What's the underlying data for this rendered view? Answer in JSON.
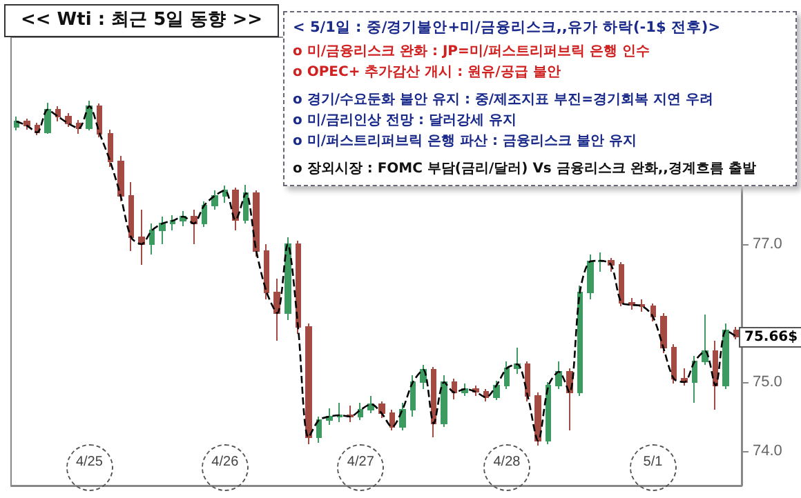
{
  "chart_data": {
    "type": "candlestick",
    "title": "<< Wti : 최근 5일 동향 >>",
    "categories": [
      null,
      null,
      null,
      null,
      null,
      null,
      null,
      "4/25",
      null,
      null,
      null,
      null,
      null,
      null,
      null,
      null,
      null,
      null,
      null,
      null,
      "4/26",
      null,
      null,
      null,
      null,
      null,
      null,
      null,
      null,
      null,
      null,
      null,
      null,
      "4/27",
      null,
      null,
      null,
      null,
      null,
      null,
      null,
      null,
      null,
      null,
      null,
      null,
      null,
      "4/28",
      null,
      null,
      null,
      null,
      null,
      null,
      null,
      null,
      null,
      null,
      null,
      null,
      null,
      "5/1",
      null,
      null,
      null,
      null,
      null,
      null,
      null,
      null
    ],
    "ohlc": [
      [
        78.7,
        78.85,
        78.65,
        78.78
      ],
      [
        78.78,
        78.82,
        78.66,
        78.72
      ],
      [
        78.72,
        78.76,
        78.58,
        78.62
      ],
      [
        78.62,
        79.05,
        78.6,
        78.95
      ],
      [
        78.95,
        79.0,
        78.78,
        78.85
      ],
      [
        78.85,
        78.9,
        78.7,
        78.75
      ],
      [
        78.75,
        78.8,
        78.6,
        78.68
      ],
      [
        78.68,
        79.08,
        78.65,
        79.0
      ],
      [
        79.0,
        79.04,
        78.55,
        78.6
      ],
      [
        78.6,
        78.66,
        78.12,
        78.2
      ],
      [
        78.2,
        78.28,
        77.62,
        77.7
      ],
      [
        77.7,
        77.9,
        76.9,
        77.1
      ],
      [
        77.1,
        77.5,
        76.7,
        77.0
      ],
      [
        77.0,
        77.3,
        76.85,
        77.2
      ],
      [
        77.2,
        77.4,
        77.0,
        77.3
      ],
      [
        77.3,
        77.42,
        77.2,
        77.34
      ],
      [
        77.34,
        77.48,
        77.26,
        77.4
      ],
      [
        77.4,
        77.5,
        77.0,
        77.3
      ],
      [
        77.3,
        77.62,
        77.25,
        77.56
      ],
      [
        77.56,
        77.78,
        77.5,
        77.7
      ],
      [
        77.7,
        77.85,
        77.6,
        77.78
      ],
      [
        77.78,
        77.82,
        77.2,
        77.35
      ],
      [
        77.35,
        77.86,
        77.3,
        77.74
      ],
      [
        77.74,
        77.78,
        76.82,
        76.9
      ],
      [
        76.9,
        77.0,
        76.2,
        76.3
      ],
      [
        76.3,
        76.5,
        75.6,
        76.0
      ],
      [
        76.0,
        77.1,
        75.9,
        77.0
      ],
      [
        77.0,
        77.05,
        75.7,
        75.8
      ],
      [
        75.8,
        75.85,
        74.1,
        74.2
      ],
      [
        74.2,
        74.5,
        74.12,
        74.45
      ],
      [
        74.45,
        74.62,
        74.38,
        74.5
      ],
      [
        74.5,
        74.7,
        74.42,
        74.52
      ],
      [
        74.52,
        74.66,
        74.42,
        74.5
      ],
      [
        74.5,
        74.7,
        74.45,
        74.6
      ],
      [
        74.6,
        74.8,
        74.55,
        74.68
      ],
      [
        74.68,
        74.72,
        74.48,
        74.55
      ],
      [
        74.55,
        74.6,
        74.3,
        74.35
      ],
      [
        74.35,
        74.7,
        74.3,
        74.6
      ],
      [
        74.6,
        75.1,
        74.5,
        75.0
      ],
      [
        75.0,
        75.25,
        74.9,
        75.18
      ],
      [
        75.18,
        75.22,
        74.2,
        74.4
      ],
      [
        74.4,
        75.1,
        74.35,
        75.0
      ],
      [
        75.0,
        75.05,
        74.75,
        74.85
      ],
      [
        74.85,
        74.98,
        74.8,
        74.9
      ],
      [
        74.9,
        74.95,
        74.8,
        74.86
      ],
      [
        74.86,
        74.9,
        74.72,
        74.78
      ],
      [
        74.78,
        75.02,
        74.74,
        74.95
      ],
      [
        74.95,
        75.3,
        74.9,
        75.2
      ],
      [
        75.2,
        75.5,
        75.12,
        75.26
      ],
      [
        75.26,
        75.3,
        74.72,
        74.8
      ],
      [
        74.8,
        74.85,
        74.08,
        74.15
      ],
      [
        74.15,
        75.0,
        74.1,
        74.95
      ],
      [
        74.95,
        75.3,
        74.9,
        75.15
      ],
      [
        75.15,
        75.2,
        74.3,
        74.85
      ],
      [
        74.85,
        76.4,
        74.8,
        76.3
      ],
      [
        76.3,
        76.85,
        76.2,
        76.75
      ],
      [
        76.75,
        76.88,
        76.6,
        76.76
      ],
      [
        76.76,
        76.8,
        76.6,
        76.7
      ],
      [
        76.7,
        76.74,
        76.1,
        76.15
      ],
      [
        76.15,
        76.22,
        76.05,
        76.12
      ],
      [
        76.12,
        76.2,
        76.02,
        76.1
      ],
      [
        76.1,
        76.14,
        75.88,
        75.95
      ],
      [
        75.95,
        76.0,
        75.42,
        75.5
      ],
      [
        75.5,
        75.55,
        74.98,
        75.05
      ],
      [
        75.05,
        75.2,
        74.95,
        75.0
      ],
      [
        75.0,
        75.38,
        74.7,
        75.3
      ],
      [
        75.3,
        75.98,
        75.25,
        75.45
      ],
      [
        75.45,
        75.6,
        74.6,
        74.95
      ],
      [
        74.95,
        75.85,
        74.9,
        75.75
      ],
      [
        75.75,
        75.8,
        75.62,
        75.66
      ]
    ],
    "colors": [
      "#3d9b62",
      "#a34a42",
      "#a34a42",
      "#3d9b62",
      "#a34a42",
      "#a34a42",
      "#a34a42",
      "#3d9b62",
      "#a34a42",
      "#a34a42",
      "#a34a42",
      "#a34a42",
      "#a34a42",
      "#3d9b62",
      "#3d9b62",
      "#3d9b62",
      "#3d9b62",
      "#a34a42",
      "#3d9b62",
      "#3d9b62",
      "#3d9b62",
      "#a34a42",
      "#3d9b62",
      "#a34a42",
      "#a34a42",
      "#a34a42",
      "#3d9b62",
      "#a34a42",
      "#a34a42",
      "#3d9b62",
      "#3d9b62",
      "#3d9b62",
      "#a34a42",
      "#3d9b62",
      "#3d9b62",
      "#a34a42",
      "#a34a42",
      "#3d9b62",
      "#3d9b62",
      "#3d9b62",
      "#a34a42",
      "#3d9b62",
      "#a34a42",
      "#3d9b62",
      "#a34a42",
      "#a34a42",
      "#3d9b62",
      "#3d9b62",
      "#3d9b62",
      "#a34a42",
      "#a34a42",
      "#3d9b62",
      "#3d9b62",
      "#a34a42",
      "#3d9b62",
      "#3d9b62",
      "#3d9b62",
      "#a34a42",
      "#a34a42",
      "#a34a42",
      "#a34a42",
      "#a34a42",
      "#a34a42",
      "#a34a42",
      "#a34a42",
      "#3d9b62",
      "#3d9b62",
      "#a34a42",
      "#3d9b62",
      "#a34a42"
    ],
    "series": [
      {
        "type": "line",
        "color": "#000000",
        "values": [
          78.78,
          78.72,
          78.62,
          78.95,
          78.85,
          78.75,
          78.68,
          79.0,
          78.6,
          78.2,
          77.7,
          77.1,
          77.0,
          77.2,
          77.3,
          77.34,
          77.4,
          77.3,
          77.56,
          77.7,
          77.78,
          77.35,
          77.74,
          76.9,
          76.3,
          76.0,
          77.0,
          75.8,
          74.2,
          74.45,
          74.5,
          74.52,
          74.5,
          74.6,
          74.68,
          74.55,
          74.35,
          74.6,
          75.0,
          75.18,
          74.4,
          75.0,
          74.85,
          74.9,
          74.86,
          74.78,
          74.95,
          75.2,
          75.26,
          74.8,
          74.15,
          74.95,
          75.15,
          74.85,
          76.3,
          76.75,
          76.76,
          76.7,
          76.15,
          76.12,
          76.1,
          75.95,
          75.5,
          75.05,
          75.0,
          75.3,
          75.45,
          74.95,
          75.75,
          75.66
        ]
      }
    ],
    "line_style": "dashed",
    "marker": "none",
    "ylim": [
      73.5,
      80.0
    ],
    "yticks": [
      {
        "value": 74,
        "label": "74.0"
      },
      {
        "value": 75,
        "label": "75.0"
      },
      {
        "value": 77,
        "label": "77.0"
      }
    ],
    "grid": false,
    "annotations": [
      "< 5/1일 : 중/경기불안+미/금융리스크,,유가 하락(-1$ 전후)>",
      "o 미/금융리스크 완화 : JP=미/퍼스트리퍼브릭 은행 인수",
      "o OPEC+ 추가감산 개시 : 원유/공급 불안",
      "o 경기/수요둔화 불안 유지 : 중/제조지표 부진=경기회복 지연 우려",
      "o 미/금리인상 전망 : 달러강세 유지",
      "o 미/퍼스트리퍼브릭 은행 파산 : 금융리스크 불안 유지",
      "o 장외시장 : FOMC 부담(금리/달러) Vs 금융리스크 완화,,경계흐름 출발",
      "75.66$"
    ]
  }
}
